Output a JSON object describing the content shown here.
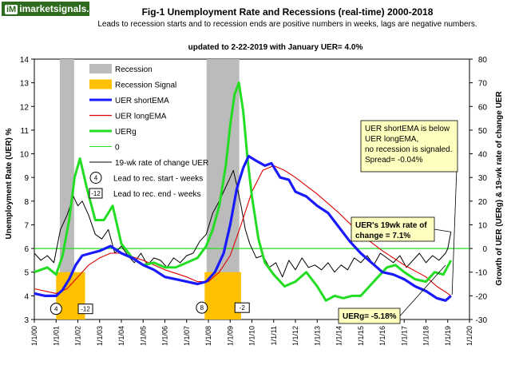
{
  "logo": {
    "badge": "iM",
    "text": "imarketsignals.com"
  },
  "chart_data": {
    "type": "line",
    "title": "Fig-1  Unemployment Rate and Recessions (real-time) 2000-2018",
    "subtitle": "Leads to recession starts and to recession ends are positive numbers in weeks, lags are negative numbers.",
    "update_note": "updated to 2-22-2019 with January UER= 4.0%",
    "ylabel_left": "Unemployment Rate (UER) %",
    "ylabel_right": "Growth of UER (UERg) & 19-wk rate of change UER",
    "ylim_left": [
      3,
      14
    ],
    "ylim_right": [
      -30,
      80
    ],
    "xlim": [
      2000.0,
      2020.0
    ],
    "x_ticks": [
      "1/1/00",
      "1/1/01",
      "1/1/02",
      "1/1/03",
      "1/1/04",
      "1/1/05",
      "1/1/06",
      "1/1/07",
      "1/1/08",
      "1/1/09",
      "1/1/10",
      "1/1/11",
      "1/1/12",
      "1/1/13",
      "1/1/14",
      "1/1/15",
      "1/1/16",
      "1/1/17",
      "1/1/18",
      "1/1/19",
      "1/1/20"
    ],
    "y_ticks_left": [
      3,
      4,
      5,
      6,
      7,
      8,
      9,
      10,
      11,
      12,
      13,
      14
    ],
    "y_ticks_right": [
      -30,
      -20,
      -10,
      0,
      10,
      20,
      30,
      40,
      50,
      60,
      70,
      80
    ],
    "recessions": [
      [
        2001.17,
        2001.83
      ],
      [
        2007.92,
        2009.42
      ]
    ],
    "recession_signals": [
      [
        2001.0,
        2002.33
      ],
      [
        2007.83,
        2009.5
      ]
    ],
    "series": [
      {
        "name": "UER shortEMA",
        "color": "#1a1aff",
        "axis": "left",
        "x": [
          2000.0,
          2000.5,
          2001.0,
          2001.3,
          2001.6,
          2001.9,
          2002.2,
          2002.6,
          2003.0,
          2003.5,
          2004.0,
          2004.5,
          2005.0,
          2005.5,
          2006.0,
          2006.5,
          2007.0,
          2007.5,
          2007.9,
          2008.3,
          2008.7,
          2009.0,
          2009.3,
          2009.6,
          2009.85,
          2010.2,
          2010.6,
          2010.9,
          2011.3,
          2011.7,
          2012.0,
          2012.5,
          2013.0,
          2013.5,
          2014.0,
          2014.5,
          2015.0,
          2015.5,
          2016.0,
          2016.5,
          2017.0,
          2017.5,
          2018.0,
          2018.5,
          2018.9,
          2019.15
        ],
        "y": [
          4.1,
          4.0,
          4.0,
          4.25,
          4.7,
          5.3,
          5.7,
          5.8,
          5.9,
          6.1,
          5.8,
          5.6,
          5.3,
          5.1,
          4.8,
          4.7,
          4.6,
          4.5,
          4.6,
          5.0,
          5.8,
          7.0,
          8.5,
          9.4,
          9.9,
          9.7,
          9.5,
          9.6,
          9.0,
          8.9,
          8.4,
          8.2,
          7.8,
          7.5,
          6.9,
          6.3,
          5.8,
          5.4,
          5.0,
          4.9,
          4.7,
          4.4,
          4.2,
          3.9,
          3.8,
          4.0
        ]
      },
      {
        "name": "UER longEMA",
        "color": "#e00000",
        "axis": "left",
        "x": [
          2000.0,
          2001.0,
          2001.5,
          2002.0,
          2002.5,
          2003.0,
          2003.5,
          2004.0,
          2005.0,
          2006.0,
          2007.0,
          2007.5,
          2008.0,
          2008.5,
          2009.0,
          2009.5,
          2010.0,
          2010.5,
          2011.0,
          2011.5,
          2012.0,
          2013.0,
          2014.0,
          2015.0,
          2016.0,
          2017.0,
          2018.0,
          2018.5,
          2019.0,
          2019.15
        ],
        "y": [
          4.3,
          4.1,
          4.3,
          4.8,
          5.3,
          5.6,
          5.8,
          5.8,
          5.5,
          5.1,
          4.8,
          4.6,
          4.6,
          5.0,
          5.7,
          7.0,
          8.4,
          9.3,
          9.5,
          9.3,
          9.0,
          8.3,
          7.5,
          6.6,
          5.9,
          5.3,
          4.8,
          4.4,
          4.1,
          4.0
        ]
      },
      {
        "name": "UERg",
        "color": "#22dd22",
        "axis": "right",
        "x": [
          2000.0,
          2000.6,
          2001.0,
          2001.3,
          2001.6,
          2001.85,
          2002.1,
          2002.4,
          2002.8,
          2003.2,
          2003.6,
          2004.0,
          2004.5,
          2005.0,
          2005.5,
          2006.0,
          2006.5,
          2007.0,
          2007.5,
          2007.9,
          2008.2,
          2008.5,
          2008.8,
          2009.0,
          2009.2,
          2009.4,
          2009.6,
          2009.8,
          2010.0,
          2010.3,
          2010.6,
          2011.0,
          2011.5,
          2012.0,
          2012.5,
          2013.0,
          2013.4,
          2013.8,
          2014.2,
          2014.6,
          2015.0,
          2015.4,
          2015.8,
          2016.2,
          2016.6,
          2017.0,
          2017.5,
          2018.0,
          2018.4,
          2018.8,
          2019.15
        ],
        "y": [
          -10,
          -8,
          -11,
          -3,
          12,
          30,
          38,
          26,
          12,
          12,
          18,
          2,
          -4,
          -7,
          -6,
          -8,
          -8,
          -6,
          -4,
          1,
          8,
          18,
          35,
          52,
          65,
          70,
          58,
          38,
          22,
          4,
          -6,
          -11,
          -16,
          -14,
          -10,
          -16,
          -22,
          -20,
          -21,
          -20,
          -20,
          -16,
          -12,
          -8,
          -7,
          -10,
          -13,
          -14,
          -10,
          -11,
          -5
        ]
      },
      {
        "name": "19-wk rate of change UER",
        "color": "#000000",
        "axis": "right",
        "x": [
          2000.0,
          2000.3,
          2000.6,
          2000.9,
          2001.2,
          2001.5,
          2001.8,
          2002.0,
          2002.2,
          2002.5,
          2002.8,
          2003.1,
          2003.4,
          2003.7,
          2004.0,
          2004.3,
          2004.6,
          2004.9,
          2005.2,
          2005.5,
          2005.8,
          2006.1,
          2006.4,
          2006.7,
          2007.0,
          2007.3,
          2007.6,
          2007.9,
          2008.2,
          2008.5,
          2008.8,
          2009.0,
          2009.15,
          2009.3,
          2009.5,
          2009.7,
          2009.9,
          2010.2,
          2010.5,
          2010.8,
          2011.1,
          2011.4,
          2011.7,
          2012.0,
          2012.3,
          2012.6,
          2012.9,
          2013.2,
          2013.5,
          2013.8,
          2014.1,
          2014.4,
          2014.7,
          2015.0,
          2015.3,
          2015.6,
          2015.9,
          2016.2,
          2016.5,
          2016.8,
          2017.1,
          2017.4,
          2017.7,
          2018.0,
          2018.3,
          2018.6,
          2018.9,
          2019.0,
          2019.15
        ],
        "y": [
          -2,
          -5,
          -3,
          -6,
          8,
          14,
          22,
          18,
          20,
          14,
          6,
          4,
          8,
          -2,
          1,
          -3,
          -6,
          -2,
          -7,
          -4,
          -5,
          -8,
          -4,
          -6,
          -3,
          -2,
          3,
          6,
          15,
          20,
          26,
          30,
          33,
          27,
          18,
          8,
          2,
          -4,
          -3,
          -8,
          -6,
          -12,
          -5,
          -9,
          -4,
          -8,
          -7,
          -9,
          -6,
          -10,
          -7,
          -9,
          -4,
          -6,
          -3,
          -7,
          -2,
          -4,
          -6,
          -3,
          -8,
          -5,
          -2,
          -6,
          -3,
          -5,
          -2,
          0,
          7
        ]
      },
      {
        "name": "0",
        "color": "#22dd22",
        "axis": "right",
        "x": [
          2000.0,
          2020.0
        ],
        "y": [
          0,
          0
        ]
      }
    ],
    "legend": [
      {
        "label": "Recession",
        "kind": "box",
        "color": "#bbbbbb"
      },
      {
        "label": "Recession Signal",
        "kind": "box",
        "color": "#ffc000"
      },
      {
        "label": "UER shortEMA",
        "kind": "line",
        "color": "#1a1aff",
        "width": 3
      },
      {
        "label": "UER longEMA",
        "kind": "line",
        "color": "#e00000",
        "width": 1.2
      },
      {
        "label": "UERg",
        "kind": "line",
        "color": "#22dd22",
        "width": 3
      },
      {
        "label": "0",
        "kind": "line",
        "color": "#22dd22",
        "width": 1
      },
      {
        "label": "19-wk rate of change UER",
        "kind": "line",
        "color": "#000000",
        "width": 1
      }
    ],
    "lead_lag_legend": [
      {
        "value": "4",
        "shape": "ellipse",
        "label": "Lead to rec. start - weeks"
      },
      {
        "value": "-12",
        "shape": "rect",
        "label": "Lead to rec. end - weeks"
      }
    ],
    "markers": [
      {
        "value": "4",
        "shape": "ellipse",
        "x": 2001.0,
        "y": 3.45
      },
      {
        "value": "-12",
        "shape": "rect",
        "x": 2002.35,
        "y": 3.45
      },
      {
        "value": "8",
        "shape": "ellipse",
        "x": 2007.7,
        "y": 3.5
      },
      {
        "value": "-2",
        "shape": "rect",
        "x": 2009.55,
        "y": 3.5
      }
    ],
    "callouts": [
      {
        "lines": [
          "UER shortEMA  is below",
          "UER longEMA,",
          "no recession is signaled.",
          "Spread= -0.04%"
        ],
        "points_to": [
          2019.2,
          4.05
        ]
      },
      {
        "lines": [
          "UER's 19wk rate of",
          "change  = 7.1%"
        ],
        "points_to": [
          2019.15,
          6.7
        ]
      },
      {
        "lines": [
          "UERg=   -5.18%"
        ],
        "points_to": [
          2018.9,
          5.3
        ]
      }
    ],
    "colors": {
      "recession": "#bbbbbb",
      "signal": "#ffc000",
      "callout_bg": "#ffffc0"
    }
  }
}
